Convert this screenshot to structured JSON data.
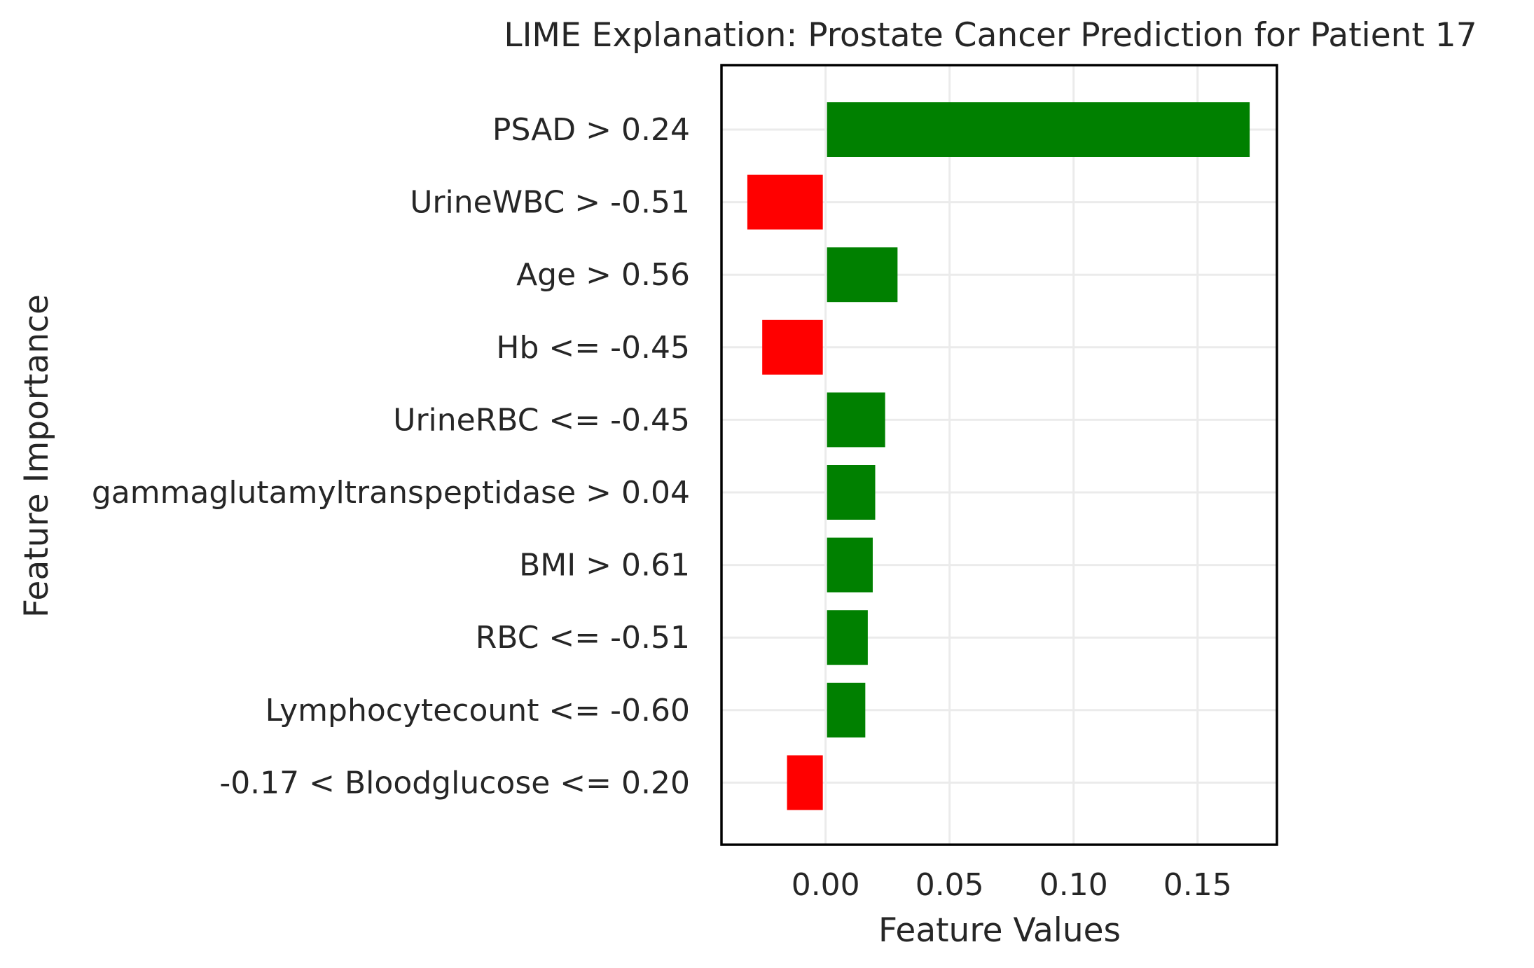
{
  "chart_data": {
    "type": "bar",
    "orientation": "horizontal",
    "title": "LIME Explanation: Prostate Cancer Prediction for Patient 17",
    "xlabel": "Feature Values",
    "ylabel": "Feature Importance",
    "xlim": [
      -0.042,
      0.182
    ],
    "xticks": [
      0.0,
      0.05,
      0.1,
      0.15
    ],
    "xtick_labels": [
      "0.00",
      "0.05",
      "0.10",
      "0.15"
    ],
    "grid": true,
    "colors": {
      "positive": "#008000",
      "negative": "#ff0000"
    },
    "categories": [
      "PSAD > 0.24",
      "UrineWBC > -0.51",
      "Age > 0.56",
      "Hb <= -0.45",
      "UrineRBC <= -0.45",
      "gammaglutamyltranspeptidase > 0.04",
      "BMI > 0.61",
      "RBC <= -0.51",
      "Lymphocytecount <= -0.60",
      "-0.17 < Bloodglucose <= 0.20"
    ],
    "values": [
      0.171,
      -0.031,
      0.029,
      -0.025,
      0.024,
      0.02,
      0.019,
      0.017,
      0.016,
      -0.015
    ]
  }
}
